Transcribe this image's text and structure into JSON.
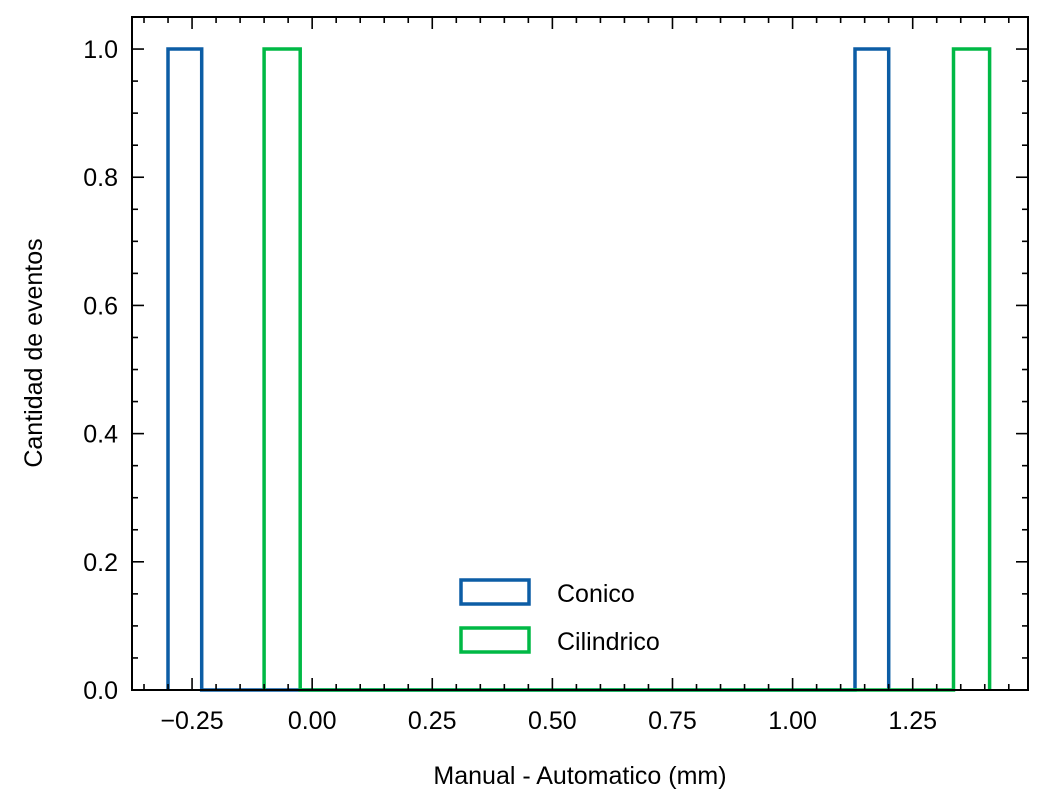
{
  "chart_data": {
    "type": "bar",
    "histtype": "step",
    "xlabel": "Manual - Automatico (mm)",
    "ylabel": "Cantidad de eventos",
    "xlim": [
      -0.375,
      1.49
    ],
    "ylim": [
      0,
      1.05
    ],
    "xticks": [
      -0.25,
      0.0,
      0.25,
      0.5,
      0.75,
      1.0,
      1.25
    ],
    "xtick_labels": [
      "−0.25",
      "0.00",
      "0.25",
      "0.50",
      "0.75",
      "1.00",
      "1.25"
    ],
    "yticks": [
      0.0,
      0.2,
      0.4,
      0.6,
      0.8,
      1.0
    ],
    "ytick_labels": [
      "0.0",
      "0.2",
      "0.4",
      "0.6",
      "0.8",
      "1.0"
    ],
    "grid": false,
    "legend_position": "bottom-center",
    "series": [
      {
        "name": "Conico",
        "color": "#0C5DA5",
        "bins": [
          [
            -0.3,
            -0.23,
            1
          ],
          [
            -0.23,
            1.13,
            0
          ],
          [
            1.13,
            1.2,
            1
          ]
        ]
      },
      {
        "name": "Cilindrico",
        "color": "#00B945",
        "bins": [
          [
            -0.1,
            -0.025,
            1
          ],
          [
            -0.025,
            1.335,
            0
          ],
          [
            1.335,
            1.41,
            1
          ]
        ]
      }
    ]
  }
}
